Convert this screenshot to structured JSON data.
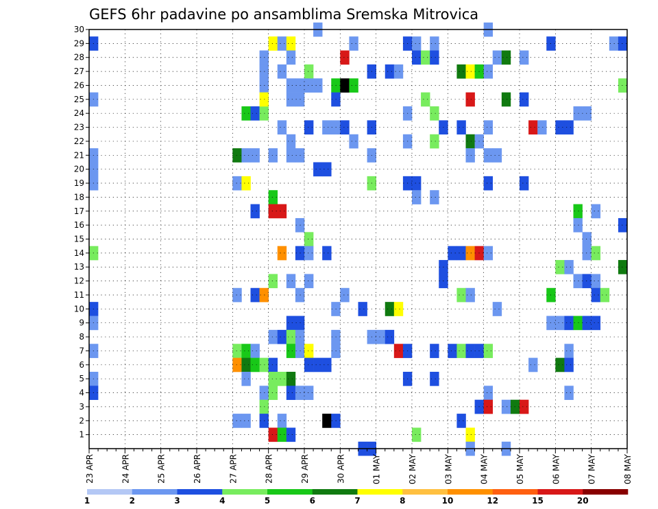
{
  "chart_data": {
    "type": "heatmap",
    "title": "GEFS 6hr padavine po ansamblima Sremska Mitrovica",
    "xlabel": "",
    "ylabel": "",
    "x_ticks": [
      "23 APR",
      "24 APR",
      "25 APR",
      "26 APR",
      "27 APR",
      "28 APR",
      "29 APR",
      "30 APR",
      "01 MAY",
      "02 MAY",
      "03 MAY",
      "04 MAY",
      "05 MAY",
      "06 MAY",
      "07 MAY",
      "08 MAY"
    ],
    "x_steps_per_day": 4,
    "x_range_steps": [
      0,
      60
    ],
    "y_ticks": [
      1,
      2,
      3,
      4,
      5,
      6,
      7,
      8,
      9,
      10,
      11,
      12,
      13,
      14,
      15,
      16,
      17,
      18,
      19,
      20,
      21,
      22,
      23,
      24,
      25,
      26,
      27,
      28,
      29,
      30
    ],
    "y_range": [
      0,
      30
    ],
    "grid": true,
    "legend_position": "bottom",
    "legend": {
      "labels": [
        "1",
        "2",
        "3",
        "4",
        "5",
        "6",
        "7",
        "8",
        "10",
        "12",
        "15",
        "20"
      ],
      "colors": [
        "#b4c8f5",
        "#6c97f0",
        "#1e4fe0",
        "#78ec5e",
        "#18c818",
        "#107a10",
        "#ffff00",
        "#ffc040",
        "#ff9000",
        "#ff6010",
        "#d81818",
        "#880000"
      ]
    },
    "cells": [
      [
        0,
        29,
        2
      ],
      [
        0,
        25,
        1
      ],
      [
        0,
        21,
        1
      ],
      [
        0,
        20,
        1
      ],
      [
        0,
        19,
        1
      ],
      [
        0,
        14,
        3
      ],
      [
        0,
        10,
        2
      ],
      [
        0,
        9,
        1
      ],
      [
        0,
        7,
        1
      ],
      [
        0,
        5,
        1
      ],
      [
        0,
        4,
        2
      ],
      [
        16,
        21,
        5
      ],
      [
        16,
        19,
        1
      ],
      [
        16,
        11,
        1
      ],
      [
        16,
        7,
        3
      ],
      [
        16,
        6,
        8
      ],
      [
        16,
        2,
        1
      ],
      [
        17,
        24,
        4
      ],
      [
        17,
        21,
        1
      ],
      [
        17,
        19,
        6
      ],
      [
        17,
        7,
        4
      ],
      [
        17,
        6,
        5
      ],
      [
        17,
        5,
        1
      ],
      [
        17,
        2,
        1
      ],
      [
        18,
        24,
        2
      ],
      [
        18,
        21,
        1
      ],
      [
        18,
        17,
        2
      ],
      [
        18,
        11,
        2
      ],
      [
        18,
        7,
        1
      ],
      [
        18,
        6,
        4
      ],
      [
        19,
        28,
        1
      ],
      [
        19,
        27,
        1
      ],
      [
        19,
        24,
        3
      ],
      [
        19,
        26,
        1
      ],
      [
        19,
        25,
        6
      ],
      [
        19,
        11,
        8
      ],
      [
        19,
        6,
        3
      ],
      [
        19,
        4,
        1
      ],
      [
        19,
        3,
        3
      ],
      [
        19,
        2,
        2
      ],
      [
        20,
        29,
        6
      ],
      [
        20,
        21,
        1
      ],
      [
        20,
        18,
        4
      ],
      [
        20,
        17,
        10
      ],
      [
        20,
        12,
        3
      ],
      [
        20,
        8,
        1
      ],
      [
        20,
        6,
        2
      ],
      [
        20,
        5,
        3
      ],
      [
        20,
        4,
        3
      ],
      [
        20,
        1,
        10
      ],
      [
        21,
        29,
        1
      ],
      [
        21,
        27,
        1
      ],
      [
        21,
        23,
        1
      ],
      [
        21,
        17,
        10
      ],
      [
        21,
        14,
        8
      ],
      [
        21,
        8,
        2
      ],
      [
        21,
        5,
        3
      ],
      [
        21,
        2,
        1
      ],
      [
        21,
        1,
        4
      ],
      [
        22,
        29,
        6
      ],
      [
        22,
        28,
        1
      ],
      [
        22,
        26,
        1
      ],
      [
        22,
        25,
        1
      ],
      [
        22,
        22,
        1
      ],
      [
        22,
        21,
        1
      ],
      [
        22,
        12,
        1
      ],
      [
        22,
        9,
        2
      ],
      [
        22,
        8,
        3
      ],
      [
        22,
        7,
        4
      ],
      [
        22,
        5,
        5
      ],
      [
        22,
        4,
        2
      ],
      [
        22,
        1,
        2
      ],
      [
        23,
        26,
        1
      ],
      [
        23,
        25,
        1
      ],
      [
        23,
        21,
        1
      ],
      [
        23,
        16,
        1
      ],
      [
        23,
        14,
        2
      ],
      [
        23,
        11,
        1
      ],
      [
        23,
        9,
        2
      ],
      [
        23,
        8,
        1
      ],
      [
        23,
        7,
        1
      ],
      [
        23,
        4,
        1
      ],
      [
        24,
        27,
        3
      ],
      [
        24,
        26,
        1
      ],
      [
        24,
        23,
        2
      ],
      [
        24,
        15,
        3
      ],
      [
        24,
        14,
        1
      ],
      [
        24,
        12,
        1
      ],
      [
        24,
        7,
        6
      ],
      [
        24,
        6,
        2
      ],
      [
        24,
        4,
        1
      ],
      [
        25,
        30,
        1
      ],
      [
        25,
        26,
        1
      ],
      [
        25,
        20,
        2
      ],
      [
        25,
        6,
        2
      ],
      [
        26,
        23,
        1
      ],
      [
        26,
        20,
        2
      ],
      [
        26,
        14,
        2
      ],
      [
        26,
        6,
        2
      ],
      [
        26,
        2,
        15
      ],
      [
        27,
        26,
        4
      ],
      [
        27,
        25,
        2
      ],
      [
        27,
        23,
        1
      ],
      [
        27,
        10,
        1
      ],
      [
        27,
        8,
        1
      ],
      [
        27,
        7,
        1
      ],
      [
        27,
        2,
        2
      ],
      [
        28,
        28,
        10
      ],
      [
        28,
        26,
        12
      ],
      [
        28,
        23,
        2
      ],
      [
        28,
        11,
        1
      ],
      [
        29,
        29,
        1
      ],
      [
        29,
        26,
        4
      ],
      [
        29,
        22,
        1
      ],
      [
        30,
        10,
        2
      ],
      [
        30,
        0,
        2
      ],
      [
        31,
        27,
        2
      ],
      [
        31,
        23,
        2
      ],
      [
        31,
        21,
        1
      ],
      [
        31,
        19,
        3
      ],
      [
        31,
        8,
        1
      ],
      [
        31,
        0,
        2
      ],
      [
        32,
        8,
        1
      ],
      [
        33,
        27,
        2
      ],
      [
        33,
        10,
        5
      ],
      [
        33,
        8,
        2
      ],
      [
        34,
        27,
        1
      ],
      [
        34,
        10,
        6
      ],
      [
        34,
        7,
        10
      ],
      [
        35,
        29,
        2
      ],
      [
        35,
        24,
        1
      ],
      [
        35,
        22,
        1
      ],
      [
        35,
        19,
        2
      ],
      [
        35,
        7,
        2
      ],
      [
        35,
        5,
        2
      ],
      [
        36,
        29,
        1
      ],
      [
        36,
        28,
        2
      ],
      [
        36,
        19,
        2
      ],
      [
        36,
        18,
        1
      ],
      [
        36,
        1,
        3
      ],
      [
        37,
        28,
        3
      ],
      [
        37,
        25,
        3
      ],
      [
        38,
        29,
        1
      ],
      [
        38,
        28,
        2
      ],
      [
        38,
        24,
        3
      ],
      [
        38,
        22,
        3
      ],
      [
        38,
        18,
        1
      ],
      [
        38,
        7,
        2
      ],
      [
        38,
        5,
        2
      ],
      [
        39,
        23,
        2
      ],
      [
        39,
        13,
        2
      ],
      [
        39,
        12,
        2
      ],
      [
        40,
        14,
        2
      ],
      [
        40,
        7,
        2
      ],
      [
        41,
        27,
        5
      ],
      [
        41,
        23,
        2
      ],
      [
        41,
        14,
        2
      ],
      [
        41,
        11,
        3
      ],
      [
        41,
        7,
        3
      ],
      [
        41,
        2,
        2
      ],
      [
        42,
        27,
        6
      ],
      [
        42,
        25,
        10
      ],
      [
        42,
        22,
        5
      ],
      [
        42,
        21,
        1
      ],
      [
        42,
        14,
        8
      ],
      [
        42,
        11,
        1
      ],
      [
        42,
        7,
        2
      ],
      [
        42,
        1,
        6
      ],
      [
        42,
        0,
        1
      ],
      [
        43,
        27,
        4
      ],
      [
        43,
        22,
        1
      ],
      [
        43,
        14,
        10
      ],
      [
        43,
        7,
        2
      ],
      [
        43,
        3,
        2
      ],
      [
        44,
        30,
        1
      ],
      [
        44,
        27,
        1
      ],
      [
        44,
        23,
        1
      ],
      [
        44,
        21,
        1
      ],
      [
        44,
        19,
        2
      ],
      [
        44,
        14,
        1
      ],
      [
        44,
        7,
        3
      ],
      [
        44,
        4,
        1
      ],
      [
        44,
        3,
        10
      ],
      [
        45,
        28,
        1
      ],
      [
        45,
        21,
        1
      ],
      [
        45,
        10,
        1
      ],
      [
        46,
        28,
        5
      ],
      [
        46,
        25,
        5
      ],
      [
        46,
        3,
        1
      ],
      [
        46,
        0,
        1
      ],
      [
        47,
        3,
        5
      ],
      [
        48,
        28,
        1
      ],
      [
        48,
        25,
        2
      ],
      [
        48,
        19,
        2
      ],
      [
        48,
        3,
        10
      ],
      [
        49,
        23,
        10
      ],
      [
        49,
        6,
        1
      ],
      [
        50,
        23,
        1
      ],
      [
        51,
        29,
        2
      ],
      [
        51,
        11,
        4
      ],
      [
        51,
        9,
        1
      ],
      [
        52,
        23,
        2
      ],
      [
        52,
        13,
        3
      ],
      [
        52,
        9,
        1
      ],
      [
        52,
        6,
        5
      ],
      [
        53,
        23,
        2
      ],
      [
        53,
        13,
        1
      ],
      [
        53,
        9,
        2
      ],
      [
        53,
        7,
        1
      ],
      [
        53,
        6,
        2
      ],
      [
        53,
        4,
        1
      ],
      [
        54,
        24,
        1
      ],
      [
        54,
        17,
        4
      ],
      [
        54,
        16,
        1
      ],
      [
        54,
        12,
        1
      ],
      [
        54,
        9,
        4
      ],
      [
        55,
        24,
        1
      ],
      [
        55,
        15,
        1
      ],
      [
        55,
        14,
        1
      ],
      [
        55,
        12,
        2
      ],
      [
        55,
        9,
        2
      ],
      [
        56,
        17,
        1
      ],
      [
        56,
        14,
        3
      ],
      [
        56,
        12,
        1
      ],
      [
        56,
        11,
        2
      ],
      [
        56,
        9,
        2
      ],
      [
        57,
        11,
        3
      ],
      [
        58,
        29,
        1
      ],
      [
        59,
        29,
        2
      ],
      [
        59,
        26,
        3
      ],
      [
        59,
        16,
        2
      ],
      [
        59,
        13,
        5
      ]
    ]
  }
}
